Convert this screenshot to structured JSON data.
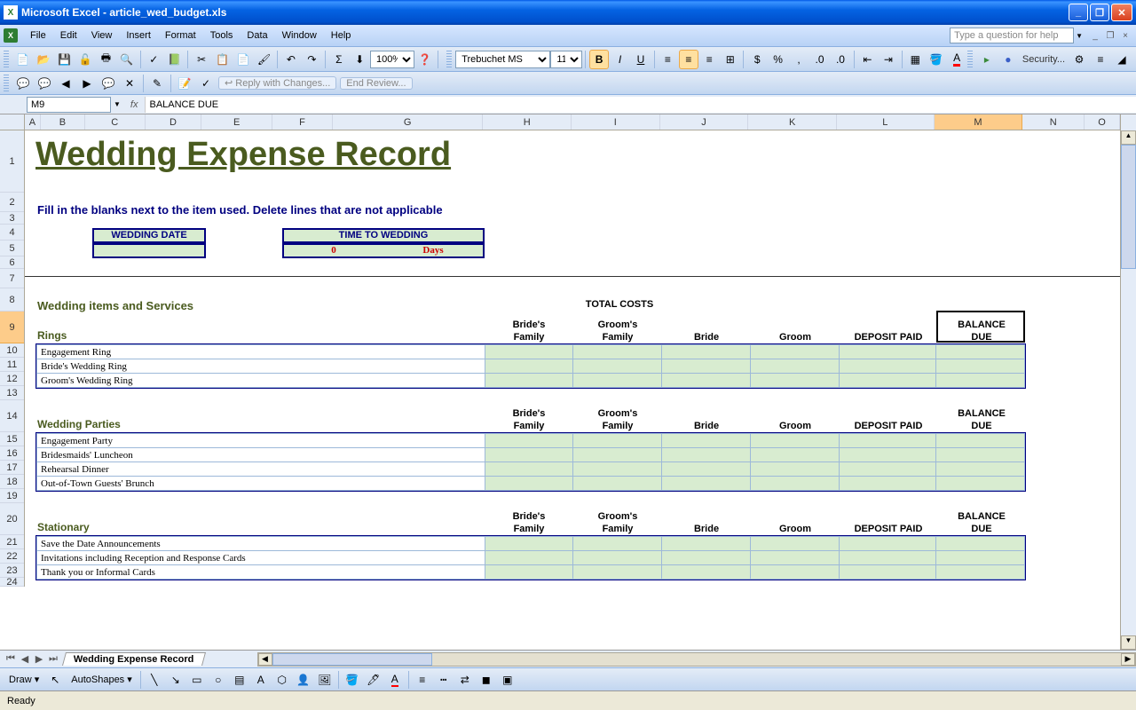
{
  "titlebar": {
    "app": "Microsoft Excel",
    "doc": "article_wed_budget.xls"
  },
  "menu": [
    "File",
    "Edit",
    "View",
    "Insert",
    "Format",
    "Tools",
    "Data",
    "Window",
    "Help"
  ],
  "helpPlaceholder": "Type a question for help",
  "font": {
    "name": "Trebuchet MS",
    "size": "11"
  },
  "zoom": "100%",
  "rightbar": {
    "sec": "Security..."
  },
  "reviewing": {
    "reply": "Reply with Changes...",
    "end": "End Review..."
  },
  "namebox": "M9",
  "formula": "BALANCE DUE",
  "columns": [
    {
      "l": "A",
      "w": 18
    },
    {
      "l": "B",
      "w": 50
    },
    {
      "l": "C",
      "w": 68
    },
    {
      "l": "D",
      "w": 64
    },
    {
      "l": "E",
      "w": 80
    },
    {
      "l": "F",
      "w": 68
    },
    {
      "l": "G",
      "w": 170
    },
    {
      "l": "H",
      "w": 100
    },
    {
      "l": "I",
      "w": 100
    },
    {
      "l": "J",
      "w": 100
    },
    {
      "l": "K",
      "w": 100
    },
    {
      "l": "L",
      "w": 110
    },
    {
      "l": "M",
      "w": 100
    },
    {
      "l": "N",
      "w": 70
    },
    {
      "l": "O",
      "w": 40
    }
  ],
  "rows": [
    {
      "n": 1,
      "h": 70
    },
    {
      "n": 2,
      "h": 22
    },
    {
      "n": 3,
      "h": 14
    },
    {
      "n": 4,
      "h": 18
    },
    {
      "n": 5,
      "h": 18
    },
    {
      "n": 6,
      "h": 14
    },
    {
      "n": 7,
      "h": 22
    },
    {
      "n": 8,
      "h": 26
    },
    {
      "n": 9,
      "h": 36
    },
    {
      "n": 10,
      "h": 16
    },
    {
      "n": 11,
      "h": 16
    },
    {
      "n": 12,
      "h": 16
    },
    {
      "n": 13,
      "h": 16
    },
    {
      "n": 14,
      "h": 36
    },
    {
      "n": 15,
      "h": 16
    },
    {
      "n": 16,
      "h": 16
    },
    {
      "n": 17,
      "h": 16
    },
    {
      "n": 18,
      "h": 16
    },
    {
      "n": 19,
      "h": 16
    },
    {
      "n": 20,
      "h": 36
    },
    {
      "n": 21,
      "h": 16
    },
    {
      "n": 22,
      "h": 16
    },
    {
      "n": 23,
      "h": 16
    },
    {
      "n": 24,
      "h": 10
    }
  ],
  "selectedCol": "M",
  "selectedRow": 9,
  "content": {
    "title": "Wedding Expense Record",
    "instruction": "Fill in the blanks next to the item used.  Delete lines that are not applicable",
    "wedDateLbl": "WEDDING DATE",
    "timeLbl": "TIME TO WEDDING",
    "timeVal0": "0",
    "timeVal1": "Days",
    "sectionHeader": "Wedding items and Services",
    "totalCosts": "TOTAL COSTS",
    "colHeaders": [
      "Bride's Family",
      "Groom's Family",
      "Bride",
      "Groom",
      "DEPOSIT PAID",
      "BALANCE DUE"
    ],
    "sections": [
      {
        "name": "Rings",
        "items": [
          "Engagement Ring",
          "Bride's Wedding Ring",
          "Groom's Wedding Ring"
        ]
      },
      {
        "name": "Wedding Parties",
        "items": [
          "Engagement Party",
          "Bridesmaids' Luncheon",
          "Rehearsal Dinner",
          "Out-of-Town Guests' Brunch"
        ]
      },
      {
        "name": "Stationary",
        "items": [
          "Save the Date Announcements",
          "Invitations including Reception and Response Cards",
          "Thank you or Informal Cards"
        ]
      }
    ]
  },
  "sheetTab": "Wedding Expense Record",
  "drawLbl": "Draw",
  "autoShapes": "AutoShapes",
  "status": "Ready",
  "colors": {
    "olive": "#4a5b1f",
    "navy": "#000080",
    "pale": "#d8ecd0",
    "red": "#c00000"
  }
}
